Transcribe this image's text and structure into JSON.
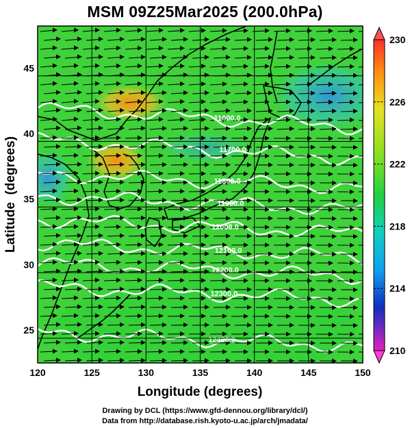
{
  "title": "MSM 09Z25Mar2025 (200.0hPa)",
  "axes": {
    "xlabel": "Longitude (degrees)",
    "ylabel": "Latitude  (degrees)",
    "x_ticks": [
      "120",
      "125",
      "130",
      "135",
      "140",
      "145",
      "150"
    ],
    "y_ticks": [
      "25",
      "30",
      "35",
      "40",
      "45"
    ]
  },
  "colorbar": {
    "ticks": [
      "230",
      "226",
      "222",
      "218",
      "214",
      "210"
    ]
  },
  "contours": [
    {
      "label": "11600.0",
      "lat": 41.2,
      "label_lon": 137.5
    },
    {
      "label": "11700.0",
      "lat": 38.8,
      "label_lon": 138.0
    },
    {
      "label": "11800.0",
      "lat": 36.4,
      "label_lon": 137.5
    },
    {
      "label": "11900.0",
      "lat": 34.7,
      "label_lon": 137.8
    },
    {
      "label": "12000.0",
      "lat": 32.9,
      "label_lon": 137.3
    },
    {
      "label": "12100.0",
      "lat": 31.1,
      "label_lon": 137.6
    },
    {
      "label": "12200.0",
      "lat": 29.6,
      "label_lon": 137.3
    },
    {
      "label": "12300.0",
      "lat": 27.8,
      "label_lon": 137.2
    },
    {
      "label": "12400.0",
      "lat": 24.3,
      "label_lon": 137.0
    }
  ],
  "credits": {
    "line1": "Drawing by DCL (https://www.gfd-dennou.org/library/dcl/)",
    "line2": "Data from http://database.rish.kyoto-u.ac.jp/arch/jmadata/"
  },
  "colors": {
    "field_base": "#3fd23a",
    "warm_patch": "#f0a020",
    "cool_patch": "#3aa0e0",
    "contour": "#ffffff",
    "arrow": "#000000"
  }
}
